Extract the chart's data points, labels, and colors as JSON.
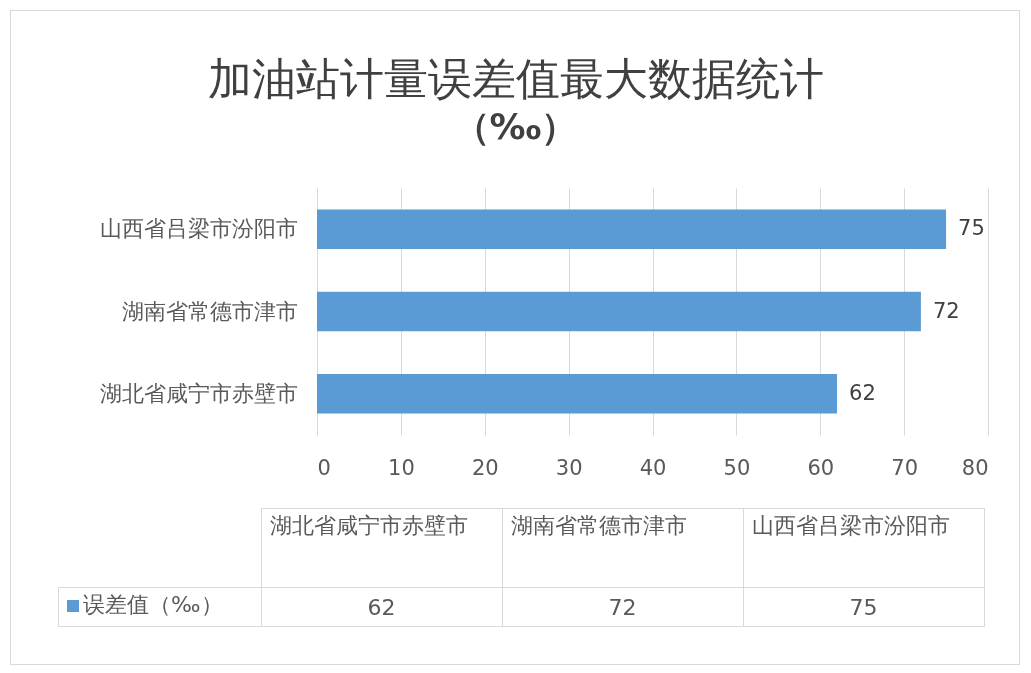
{
  "chart_data": {
    "type": "bar",
    "orientation": "horizontal",
    "title": "加油站计量误差值最大数据统计",
    "subtitle": "（‰）",
    "categories": [
      "山西省吕梁市汾阳市",
      "湖南省常德市津市",
      "湖北省咸宁市赤壁市"
    ],
    "series": [
      {
        "name": "误差值（‰）",
        "color": "#5b9bd5",
        "values": [
          75,
          72,
          62
        ],
        "value_labels": [
          "75",
          "72",
          "62"
        ]
      }
    ],
    "xlim": [
      0,
      80
    ],
    "xticks": [
      0,
      10,
      20,
      30,
      40,
      50,
      60,
      70,
      80
    ],
    "grid": "x"
  }
}
